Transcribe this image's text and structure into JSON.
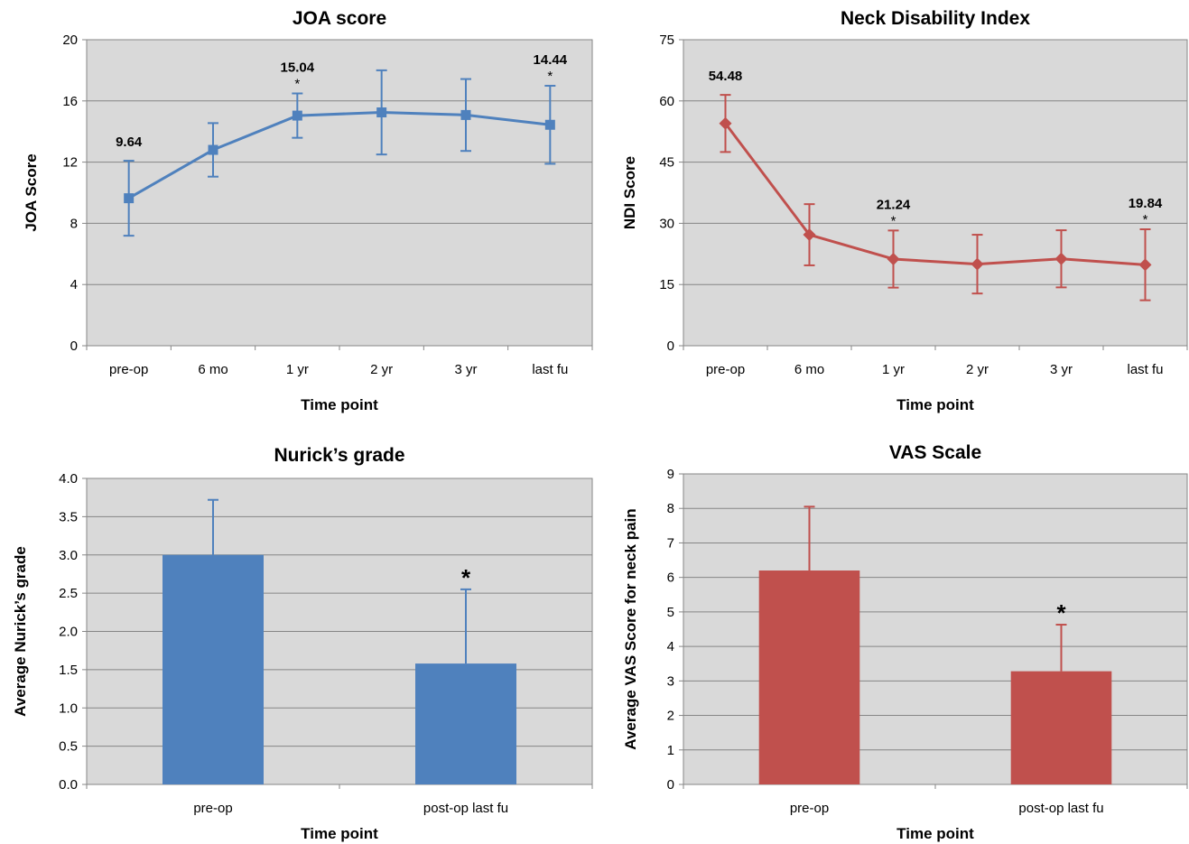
{
  "chart_data": [
    {
      "type": "line",
      "title": "JOA score",
      "xlabel": "Time point",
      "ylabel": "JOA Score",
      "categories": [
        "pre-op",
        "6 mo",
        "1 yr",
        "2 yr",
        "3 yr",
        "last fu"
      ],
      "ylim": [
        0,
        20
      ],
      "yticks": [
        0,
        4,
        8,
        12,
        16,
        20
      ],
      "grid": true,
      "series": [
        {
          "values": [
            9.64,
            12.8,
            15.04,
            15.25,
            15.08,
            14.44
          ],
          "error": [
            2.45,
            1.75,
            1.45,
            2.75,
            2.35,
            2.55
          ],
          "color": "#4f81bd",
          "marker": "square"
        }
      ],
      "data_labels": [
        {
          "index": 0,
          "text": "9.64",
          "mark": ""
        },
        {
          "index": 2,
          "text": "15.04",
          "mark": "*"
        },
        {
          "index": 5,
          "text": "14.44",
          "mark": "*"
        }
      ]
    },
    {
      "type": "line",
      "title": "Neck Disability Index",
      "xlabel": "Time point",
      "ylabel": "NDI Score",
      "categories": [
        "pre-op",
        "6 mo",
        "1 yr",
        "2 yr",
        "3 yr",
        "last fu"
      ],
      "ylim": [
        0,
        75
      ],
      "yticks": [
        0,
        15,
        30,
        45,
        60,
        75
      ],
      "grid": true,
      "series": [
        {
          "values": [
            54.48,
            27.2,
            21.24,
            20.0,
            21.3,
            19.84
          ],
          "error": [
            7.0,
            7.5,
            7.0,
            7.2,
            7.0,
            8.7
          ],
          "color": "#c0504d",
          "marker": "diamond"
        }
      ],
      "data_labels": [
        {
          "index": 0,
          "text": "54.48",
          "mark": ""
        },
        {
          "index": 2,
          "text": "21.24",
          "mark": "*"
        },
        {
          "index": 5,
          "text": "19.84",
          "mark": "*"
        }
      ]
    },
    {
      "type": "bar",
      "title": "Nurick’s grade",
      "xlabel": "Time point",
      "ylabel": "Average Nurick’s grade",
      "categories": [
        "pre-op",
        "post-op last fu"
      ],
      "ylim": [
        0,
        4
      ],
      "yticks": [
        "0.0",
        "0.5",
        "1.0",
        "1.5",
        "2.0",
        "2.5",
        "3.0",
        "3.5",
        "4.0"
      ],
      "grid": true,
      "series": [
        {
          "values": [
            3.0,
            1.58
          ],
          "error": [
            0.72,
            0.97
          ],
          "color": "#4f81bd"
        }
      ],
      "significance": [
        {
          "index": 1,
          "mark": "*"
        }
      ]
    },
    {
      "type": "bar",
      "title": "VAS Scale",
      "xlabel": "Time point",
      "ylabel": "Average VAS Score for neck pain",
      "categories": [
        "pre-op",
        "post-op last fu"
      ],
      "ylim": [
        0,
        9
      ],
      "yticks": [
        "0",
        "1",
        "2",
        "3",
        "4",
        "5",
        "6",
        "7",
        "8",
        "9"
      ],
      "grid": true,
      "series": [
        {
          "values": [
            6.2,
            3.28
          ],
          "error": [
            1.85,
            1.35
          ],
          "color": "#c0504d"
        }
      ],
      "significance": [
        {
          "index": 1,
          "mark": "*"
        }
      ]
    }
  ]
}
